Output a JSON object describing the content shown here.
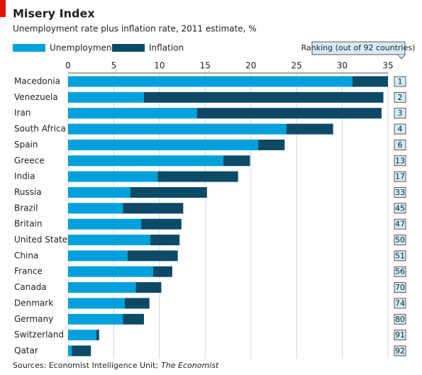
{
  "chart_data": {
    "type": "stacked_barh",
    "title": "Misery Index",
    "subtitle": "Unemployment rate plus inflation rate, 2011 estimate, %",
    "ranking_label": "Ranking (out of 92 countries)",
    "source": "Sources: Economist Intelligence Unit;",
    "source_publication": "The Economist",
    "categories": [
      "Macedonia",
      "Venezuela",
      "Iran",
      "South Africa",
      "Spain",
      "Greece",
      "India",
      "Russia",
      "Brazil",
      "Britain",
      "United States",
      "China",
      "France",
      "Canada",
      "Denmark",
      "Germany",
      "Switzerland",
      "Qatar"
    ],
    "series": [
      {
        "name": "Unemployment",
        "color": "#00a0dc",
        "values": [
          31.1,
          8.3,
          14.1,
          23.9,
          20.8,
          17.0,
          9.8,
          6.8,
          6.0,
          8.0,
          9.0,
          6.5,
          9.3,
          7.4,
          6.2,
          6.0,
          3.1,
          0.4
        ]
      },
      {
        "name": "Inflation",
        "color": "#0d4a66",
        "values": [
          3.9,
          26.2,
          20.2,
          5.1,
          2.9,
          2.9,
          8.8,
          8.4,
          6.6,
          4.4,
          3.2,
          5.5,
          2.1,
          2.8,
          2.7,
          2.3,
          0.3,
          2.1
        ]
      }
    ],
    "rankings": [
      1,
      2,
      3,
      4,
      6,
      13,
      17,
      33,
      45,
      47,
      50,
      51,
      56,
      70,
      74,
      80,
      91,
      92
    ],
    "xlim": [
      0,
      35
    ],
    "xticks": [
      0,
      5,
      10,
      15,
      20,
      25,
      30,
      35
    ],
    "grid": true
  }
}
